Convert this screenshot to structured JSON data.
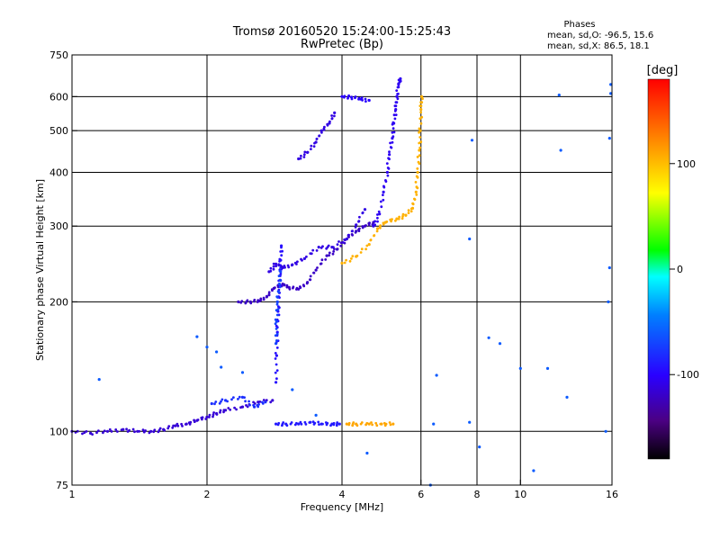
{
  "header": {
    "title_line1": "Tromsø 20160520 15:24:00-15:25:43",
    "title_line2": "RwPretec (Bp)"
  },
  "phases_box": {
    "heading": "Phases",
    "line_o": "mean, sd,O: -96.5, 15.6",
    "line_x": "mean, sd,X: 86.5, 18.1"
  },
  "colorbar": {
    "label": "[deg]",
    "tick_labels": [
      "100",
      "0",
      "-100"
    ],
    "tick_values": [
      100,
      0,
      -100
    ],
    "range": [
      -180,
      180
    ]
  },
  "chart_data": {
    "type": "scatter",
    "xlabel": "Frequency [MHz]",
    "ylabel": "Stationary phase Virtual Height [km]",
    "xscale": "log",
    "yscale": "log",
    "xlim": [
      1,
      16
    ],
    "ylim": [
      75,
      750
    ],
    "x_ticks": [
      1,
      2,
      4,
      6,
      8,
      10,
      16
    ],
    "x_tick_labels": [
      "1",
      "2",
      "4",
      "6",
      "8",
      "10",
      "16"
    ],
    "y_ticks": [
      75,
      100,
      200,
      300,
      400,
      500,
      600,
      750
    ],
    "y_tick_labels": [
      "75",
      "100",
      "200",
      "300",
      "400",
      "500",
      "600",
      "750"
    ],
    "grid": true,
    "point_color_meaning": "phase [deg]",
    "traces": [
      {
        "points": [
          [
            1.0,
            100
          ],
          [
            1.1,
            99
          ],
          [
            1.2,
            100
          ],
          [
            1.3,
            101
          ],
          [
            1.4,
            100
          ],
          [
            1.5,
            100
          ],
          [
            1.6,
            101
          ],
          [
            1.7,
            103
          ],
          [
            1.8,
            104
          ],
          [
            1.9,
            106
          ],
          [
            2.0,
            108
          ],
          [
            2.1,
            110
          ],
          [
            2.2,
            112
          ],
          [
            2.4,
            114
          ],
          [
            2.6,
            117
          ],
          [
            2.8,
            118
          ]
        ],
        "phase": -115
      },
      {
        "points": [
          [
            2.05,
            116
          ],
          [
            2.2,
            118
          ],
          [
            2.4,
            120
          ],
          [
            2.55,
            114
          ],
          [
            2.7,
            117
          ]
        ],
        "phase": -80
      },
      {
        "points": [
          [
            2.85,
            104
          ],
          [
            3.0,
            104
          ],
          [
            3.2,
            104
          ],
          [
            3.4,
            105
          ],
          [
            3.6,
            104
          ],
          [
            3.8,
            104
          ],
          [
            3.95,
            104
          ]
        ],
        "phase": -90
      },
      {
        "points": [
          [
            4.1,
            104
          ],
          [
            4.3,
            104
          ],
          [
            4.6,
            104
          ],
          [
            4.9,
            104
          ],
          [
            5.2,
            104
          ]
        ],
        "phase": 110
      },
      {
        "points": [
          [
            2.35,
            200
          ],
          [
            2.5,
            200
          ],
          [
            2.62,
            201
          ],
          [
            2.72,
            206
          ],
          [
            2.82,
            215
          ],
          [
            2.95,
            220
          ],
          [
            3.05,
            216
          ],
          [
            3.2,
            214
          ],
          [
            3.35,
            222
          ],
          [
            3.5,
            237
          ],
          [
            3.7,
            256
          ],
          [
            3.9,
            265
          ],
          [
            4.1,
            280
          ],
          [
            4.3,
            292
          ],
          [
            4.5,
            300
          ],
          [
            4.7,
            306
          ]
        ],
        "phase": -120
      },
      {
        "points": [
          [
            2.85,
            130
          ],
          [
            2.86,
            150
          ],
          [
            2.87,
            170
          ],
          [
            2.88,
            190
          ],
          [
            2.9,
            210
          ],
          [
            2.91,
            230
          ],
          [
            2.92,
            250
          ],
          [
            2.93,
            270
          ]
        ],
        "phase": -95
      },
      {
        "points": [
          [
            2.85,
            160
          ],
          [
            2.86,
            180
          ],
          [
            2.87,
            200
          ],
          [
            2.9,
            220
          ],
          [
            2.92,
            240
          ]
        ],
        "phase": -70
      },
      {
        "points": [
          [
            2.75,
            235
          ],
          [
            2.85,
            245
          ],
          [
            2.95,
            240
          ],
          [
            3.1,
            244
          ],
          [
            3.3,
            252
          ],
          [
            3.55,
            268
          ],
          [
            3.8,
            268
          ],
          [
            4.1,
            280
          ],
          [
            4.3,
            302
          ],
          [
            4.5,
            328
          ]
        ],
        "phase": -110
      },
      {
        "points": [
          [
            3.2,
            430
          ],
          [
            3.35,
            445
          ],
          [
            3.5,
            470
          ],
          [
            3.6,
            500
          ],
          [
            3.75,
            520
          ],
          [
            3.85,
            550
          ]
        ],
        "phase": -110
      },
      {
        "points": [
          [
            4.0,
            600
          ],
          [
            4.2,
            598
          ],
          [
            4.4,
            592
          ],
          [
            4.6,
            588
          ]
        ],
        "phase": -100
      },
      {
        "points": [
          [
            4.7,
            300
          ],
          [
            4.85,
            320
          ],
          [
            4.95,
            360
          ],
          [
            5.05,
            400
          ],
          [
            5.1,
            440
          ],
          [
            5.18,
            480
          ],
          [
            5.22,
            520
          ],
          [
            5.27,
            560
          ],
          [
            5.3,
            600
          ],
          [
            5.35,
            640
          ],
          [
            5.4,
            660
          ]
        ],
        "phase": -105
      },
      {
        "points": [
          [
            4.0,
            246
          ],
          [
            4.3,
            255
          ],
          [
            4.6,
            272
          ],
          [
            4.8,
            296
          ],
          [
            5.0,
            306
          ],
          [
            5.3,
            312
          ],
          [
            5.55,
            318
          ],
          [
            5.75,
            330
          ],
          [
            5.85,
            360
          ],
          [
            5.9,
            400
          ],
          [
            5.95,
            450
          ],
          [
            5.98,
            500
          ],
          [
            6.0,
            560
          ],
          [
            6.02,
            600
          ]
        ],
        "phase": 105
      },
      {
        "points": [
          [
            1.15,
            132
          ],
          [
            1.9,
            166
          ],
          [
            2.0,
            157
          ],
          [
            2.1,
            153
          ],
          [
            2.15,
            141
          ],
          [
            2.4,
            137
          ],
          [
            3.1,
            125
          ],
          [
            3.5,
            109
          ],
          [
            4.55,
            89
          ],
          [
            6.3,
            75
          ],
          [
            6.4,
            104
          ],
          [
            6.5,
            135
          ],
          [
            7.7,
            280
          ],
          [
            7.7,
            105
          ],
          [
            7.8,
            475
          ],
          [
            8.1,
            92
          ],
          [
            8.5,
            165
          ],
          [
            9.0,
            160
          ],
          [
            10.0,
            140
          ],
          [
            10.7,
            81
          ],
          [
            11.5,
            140
          ],
          [
            12.2,
            605
          ],
          [
            12.3,
            450
          ],
          [
            12.7,
            120
          ],
          [
            15.5,
            100
          ],
          [
            15.7,
            200
          ],
          [
            15.8,
            240
          ],
          [
            15.8,
            480
          ],
          [
            15.9,
            610
          ],
          [
            15.9,
            640
          ]
        ],
        "phase": -60
      }
    ]
  }
}
